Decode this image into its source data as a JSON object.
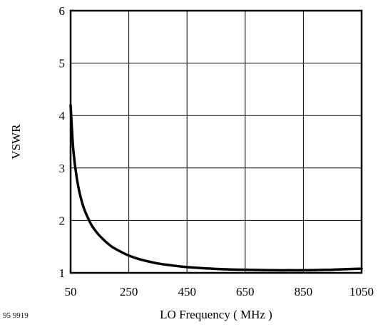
{
  "chart_data": {
    "type": "line",
    "xlabel": "LO Frequency ( MHz )",
    "ylabel": "VSWR",
    "xlim": [
      50,
      1050
    ],
    "ylim": [
      1,
      6
    ],
    "x_ticks": [
      50,
      250,
      450,
      650,
      850,
      1050
    ],
    "x_tick_labels": [
      "50",
      "250",
      "450",
      "650",
      "850",
      "1050"
    ],
    "y_ticks": [
      1,
      2,
      3,
      4,
      5,
      6
    ],
    "y_tick_labels": [
      "1",
      "2",
      "3",
      "4",
      "5",
      "6"
    ],
    "grid": true,
    "line_color": "#000000",
    "series": [
      {
        "x": [
          50,
          55,
          60,
          70,
          80,
          90,
          100,
          120,
          140,
          160,
          180,
          200,
          250,
          300,
          350,
          400,
          450,
          500,
          550,
          600,
          650,
          700,
          750,
          800,
          850,
          900,
          950,
          1000,
          1050
        ],
        "y": [
          4.2,
          3.7,
          3.3,
          2.85,
          2.55,
          2.33,
          2.17,
          1.93,
          1.77,
          1.65,
          1.55,
          1.47,
          1.33,
          1.24,
          1.18,
          1.14,
          1.11,
          1.09,
          1.075,
          1.065,
          1.06,
          1.055,
          1.05,
          1.05,
          1.05,
          1.055,
          1.06,
          1.07,
          1.08
        ]
      }
    ]
  },
  "figure_code": "95 9919"
}
